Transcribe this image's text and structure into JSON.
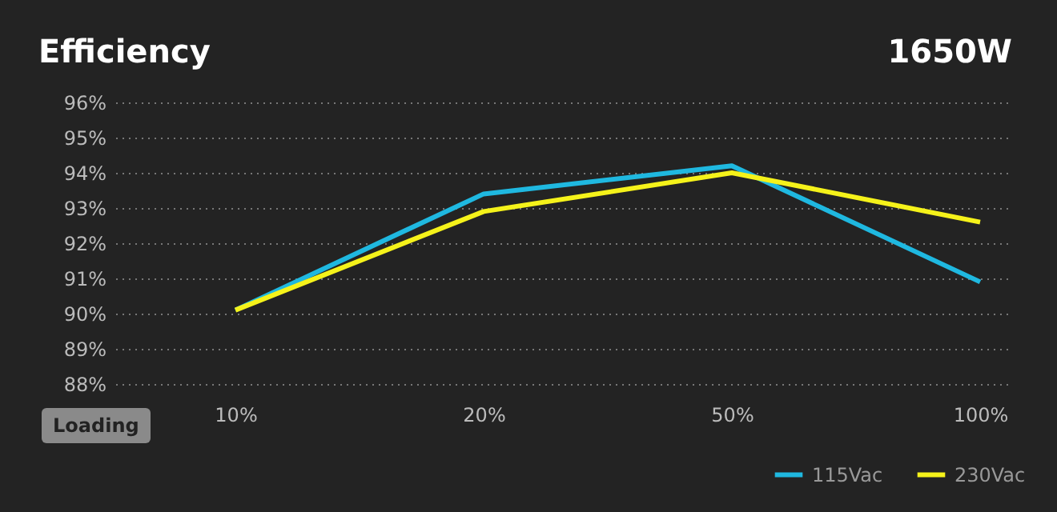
{
  "chart_data": {
    "type": "line",
    "title": "Efficiency",
    "subtitle": "1650W",
    "xlabel": "Loading",
    "categories": [
      "10%",
      "20%",
      "50%",
      "100%"
    ],
    "series": [
      {
        "name": "115Vac",
        "color": "#1fb8e0",
        "values": [
          90.1,
          93.4,
          94.2,
          90.9
        ]
      },
      {
        "name": "230Vac",
        "color": "#f5f21a",
        "values": [
          90.1,
          92.9,
          94.0,
          92.6
        ]
      }
    ],
    "ylim": [
      88,
      96
    ],
    "yticks": [
      {
        "value": 88,
        "label": "88%"
      },
      {
        "value": 89,
        "label": "89%"
      },
      {
        "value": 90,
        "label": "90%"
      },
      {
        "value": 91,
        "label": "91%"
      },
      {
        "value": 92,
        "label": "92%"
      },
      {
        "value": 93,
        "label": "93%"
      },
      {
        "value": 94,
        "label": "94%"
      },
      {
        "value": 95,
        "label": "95%"
      },
      {
        "value": 96,
        "label": "96%"
      }
    ],
    "grid": "y",
    "legend": "bottom right",
    "marker": "none",
    "line_style": "solid"
  }
}
